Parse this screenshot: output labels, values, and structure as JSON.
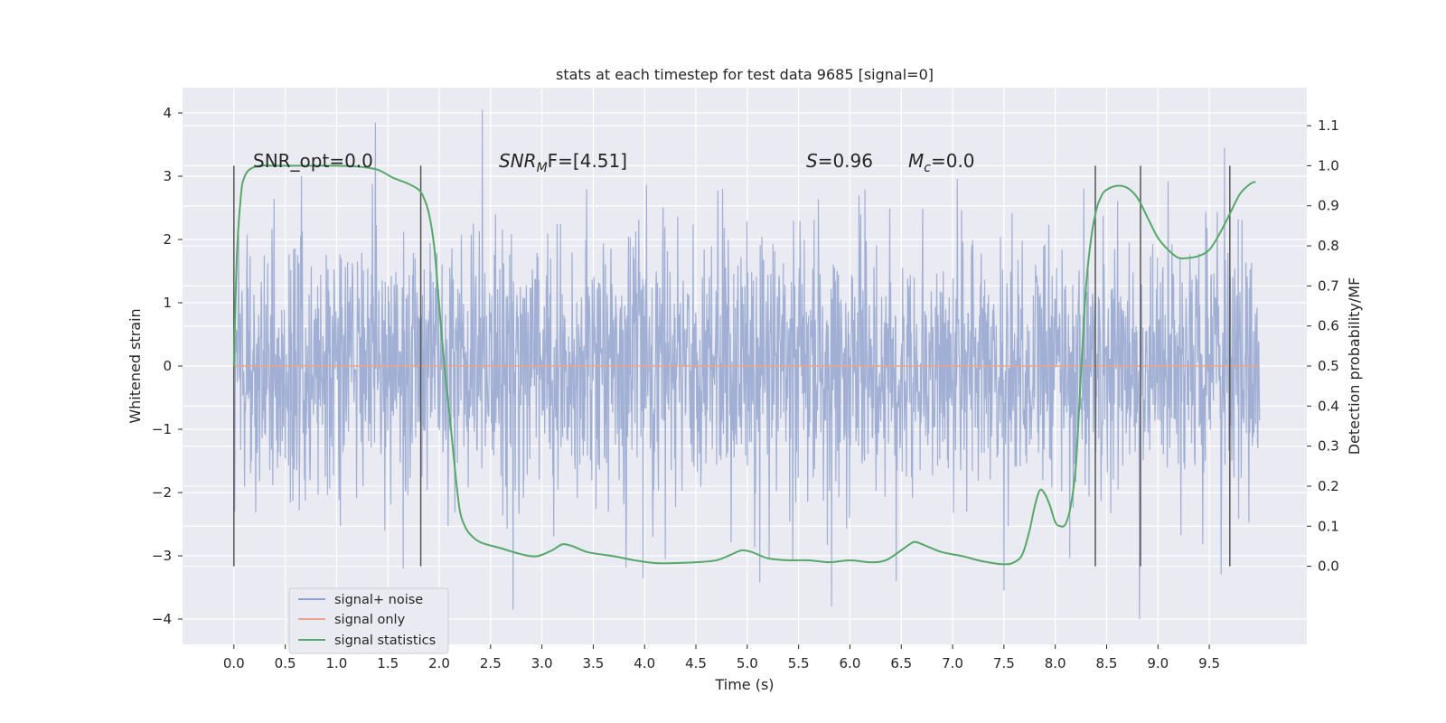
{
  "chart_data": {
    "type": "line",
    "title": "stats at each timestep for test data 9685 [signal=0]",
    "xlabel": "Time (s)",
    "ylabel": "Whitened strain",
    "y2label": "Detection probability/MF",
    "xlim": [
      -0.5,
      10.45
    ],
    "ylim": [
      -4.4,
      4.4
    ],
    "y2lim": [
      -0.195,
      1.195
    ],
    "x_ticks": [
      "0.0",
      "0.5",
      "1.0",
      "1.5",
      "2.0",
      "2.5",
      "3.0",
      "3.5",
      "4.0",
      "4.5",
      "5.0",
      "5.5",
      "6.0",
      "6.5",
      "7.0",
      "7.5",
      "8.0",
      "8.5",
      "9.0",
      "9.5"
    ],
    "y_ticks": [
      "4",
      "3",
      "2",
      "1",
      "0",
      "−1",
      "−2",
      "−3",
      "−4"
    ],
    "y2_ticks": [
      "1.1",
      "1.0",
      "0.9",
      "0.8",
      "0.7",
      "0.6",
      "0.5",
      "0.4",
      "0.3",
      "0.2",
      "0.1",
      "0.0"
    ],
    "grid": true,
    "legend_position": "lower-left",
    "annotations": {
      "snr_opt": "SNR_opt=0.0",
      "snr_mf_base": "SNR",
      "snr_mf_sub": "M",
      "snr_mf_rest": "F=[4.51]",
      "s_letter": "S",
      "s_value": "=0.96",
      "mc_letter": "M",
      "mc_sub": "c",
      "mc_value": "=0.0"
    },
    "series": [
      {
        "name": "signal+ noise",
        "color": "#8da0cb",
        "kind": "noise",
        "t_range": [
          0.0,
          9.99
        ],
        "sigma": 1.0,
        "peaks": [
          [
            1.38,
            3.85
          ],
          [
            2.42,
            4.05
          ],
          [
            2.72,
            -3.85
          ],
          [
            5.82,
            -3.8
          ],
          [
            8.82,
            -4.0
          ],
          [
            9.65,
            3.45
          ],
          [
            4.2,
            -3.05
          ],
          [
            7.5,
            -3.55
          ],
          [
            6.45,
            -3.4
          ],
          [
            1.65,
            -3.2
          ]
        ]
      },
      {
        "name": "signal only",
        "color": "#e8a58b",
        "kind": "flat",
        "t_range": [
          0.0,
          9.99
        ],
        "value": 0.0
      },
      {
        "name": "signal statistics",
        "color": "#55a868",
        "kind": "curve",
        "x": [
          0.0,
          0.03,
          0.07,
          0.1,
          0.15,
          0.25,
          0.4,
          0.7,
          1.0,
          1.2,
          1.4,
          1.55,
          1.7,
          1.8,
          1.85,
          1.9,
          1.95,
          2.0,
          2.05,
          2.1,
          2.15,
          2.2,
          2.25,
          2.3,
          2.4,
          2.6,
          2.8,
          2.95,
          3.1,
          3.2,
          3.3,
          3.45,
          3.7,
          3.9,
          4.1,
          4.3,
          4.5,
          4.7,
          4.85,
          4.95,
          5.05,
          5.2,
          5.4,
          5.6,
          5.8,
          6.0,
          6.2,
          6.35,
          6.5,
          6.6,
          6.65,
          6.75,
          6.9,
          7.1,
          7.3,
          7.5,
          7.6,
          7.68,
          7.75,
          7.8,
          7.85,
          7.9,
          7.95,
          8.0,
          8.05,
          8.1,
          8.15,
          8.2,
          8.25,
          8.3,
          8.35,
          8.4,
          8.45,
          8.5,
          8.6,
          8.7,
          8.8,
          8.9,
          9.0,
          9.1,
          9.2,
          9.3,
          9.4,
          9.5,
          9.6,
          9.7,
          9.8,
          9.9,
          9.95
        ],
        "values": [
          0.5,
          0.78,
          0.93,
          0.97,
          0.99,
          1.0,
          1.0,
          1.0,
          1.0,
          0.998,
          0.99,
          0.97,
          0.955,
          0.94,
          0.92,
          0.88,
          0.8,
          0.65,
          0.5,
          0.38,
          0.25,
          0.14,
          0.1,
          0.08,
          0.06,
          0.045,
          0.03,
          0.025,
          0.04,
          0.055,
          0.05,
          0.035,
          0.025,
          0.015,
          0.008,
          0.008,
          0.01,
          0.015,
          0.03,
          0.04,
          0.035,
          0.02,
          0.015,
          0.015,
          0.01,
          0.015,
          0.01,
          0.015,
          0.04,
          0.058,
          0.06,
          0.05,
          0.035,
          0.025,
          0.012,
          0.005,
          0.01,
          0.03,
          0.09,
          0.15,
          0.19,
          0.18,
          0.15,
          0.11,
          0.1,
          0.105,
          0.15,
          0.25,
          0.48,
          0.7,
          0.82,
          0.89,
          0.925,
          0.94,
          0.95,
          0.945,
          0.92,
          0.87,
          0.82,
          0.79,
          0.77,
          0.77,
          0.775,
          0.79,
          0.83,
          0.88,
          0.93,
          0.955,
          0.96
        ]
      }
    ],
    "markers": {
      "x": [
        0.0,
        1.82,
        8.39,
        8.83,
        9.7
      ],
      "y2_range": [
        0.0,
        1.0
      ],
      "color": "#555555"
    }
  }
}
